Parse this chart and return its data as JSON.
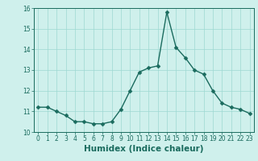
{
  "x": [
    0,
    1,
    2,
    3,
    4,
    5,
    6,
    7,
    8,
    9,
    10,
    11,
    12,
    13,
    14,
    15,
    16,
    17,
    18,
    19,
    20,
    21,
    22,
    23
  ],
  "y": [
    11.2,
    11.2,
    11.0,
    10.8,
    10.5,
    10.5,
    10.4,
    10.4,
    10.5,
    11.1,
    12.0,
    12.9,
    13.1,
    13.2,
    15.8,
    14.1,
    13.6,
    13.0,
    12.8,
    12.0,
    11.4,
    11.2,
    11.1,
    10.9
  ],
  "line_color": "#1a6b5e",
  "marker": "D",
  "markersize": 2.5,
  "linewidth": 1.0,
  "background_color": "#cff0ec",
  "grid_color": "#9dd8d2",
  "xlabel": "Humidex (Indice chaleur)",
  "xlabel_fontsize": 7.5,
  "xlim": [
    -0.5,
    23.5
  ],
  "ylim": [
    10,
    16
  ],
  "yticks": [
    10,
    11,
    12,
    13,
    14,
    15,
    16
  ],
  "xticks": [
    0,
    1,
    2,
    3,
    4,
    5,
    6,
    7,
    8,
    9,
    10,
    11,
    12,
    13,
    14,
    15,
    16,
    17,
    18,
    19,
    20,
    21,
    22,
    23
  ],
  "tick_fontsize": 5.5
}
